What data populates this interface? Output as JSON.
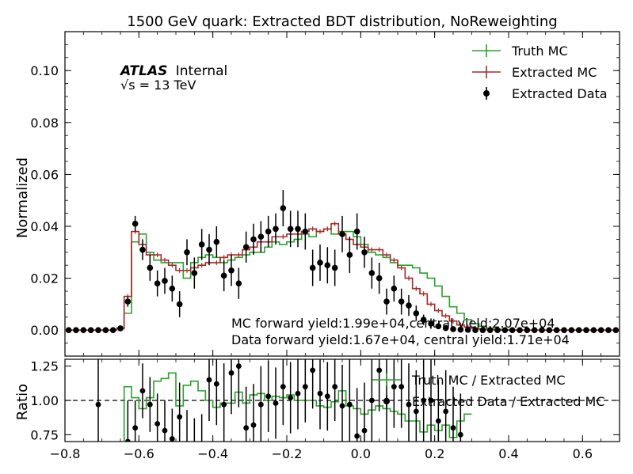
{
  "chart_data": {
    "type": "step",
    "title": "1500 GeV quark: Extracted BDT distribution, NoReweighting",
    "atlas_label": "ATLAS",
    "atlas_status": "Internal",
    "energy_label": "√s = 13 TeV",
    "colors": {
      "truth": "#2ca02c",
      "extracted": "#a52a2a",
      "data": "#000000"
    },
    "main": {
      "ylabel": "Normalized",
      "xlim": [
        -0.8,
        0.7
      ],
      "ylim": [
        -0.01,
        0.115
      ],
      "yticks": [
        "0.00",
        "0.02",
        "0.04",
        "0.06",
        "0.08",
        "0.10"
      ],
      "legend": [
        "Truth MC",
        "Extracted MC",
        "Extracted Data"
      ],
      "legend_position": "top-right",
      "annotations": [
        "MC forward yield:1.99e+04,central yield:2.07e+04",
        "Data forward yield:1.67e+04, central yield:1.71e+04"
      ]
    },
    "ratio": {
      "ylabel": "Ratio",
      "ylim": [
        0.7,
        1.3
      ],
      "yticks": [
        "0.75",
        "1.00",
        "1.25"
      ],
      "reference_line": 1.0,
      "legend": [
        "Truth MC / Extracted MC",
        "Extracted Data / Extracted MC"
      ]
    },
    "xticks": [
      "−0.8",
      "−0.6",
      "−0.4",
      "−0.2",
      "0.0",
      "0.2",
      "0.4",
      "0.6"
    ],
    "bins": {
      "start": -0.8,
      "width": 0.02,
      "count": 75
    },
    "series": [
      {
        "name": "Truth MC",
        "values": [
          0,
          0,
          0,
          0,
          0,
          0,
          0,
          0.0005,
          0.0065,
          0.034,
          0.037,
          0.03,
          0.027,
          0.026,
          0.026,
          0.026,
          0.02,
          0.026,
          0.028,
          0.029,
          0.028,
          0.026,
          0.027,
          0.028,
          0.029,
          0.03,
          0.03,
          0.032,
          0.034,
          0.033,
          0.034,
          0.035,
          0.037,
          0.036,
          0.038,
          0.039,
          0.037,
          0.038,
          0.038,
          0.036,
          0.033,
          0.03,
          0.029,
          0.028,
          0.026,
          0.025,
          0.025,
          0.024,
          0.022,
          0.02,
          0.017,
          0.013,
          0.009,
          0.0065,
          0.004,
          0.0025,
          0.0015,
          0.0008,
          0.0004,
          0.0002,
          0.0001,
          0,
          0,
          0,
          0,
          0,
          0,
          0,
          0,
          0,
          0,
          0,
          0,
          0,
          0
        ]
      },
      {
        "name": "Extracted MC",
        "values": [
          0,
          0,
          0,
          0,
          0,
          0,
          0,
          0.0008,
          0.013,
          0.038,
          0.033,
          0.029,
          0.029,
          0.027,
          0.025,
          0.023,
          0.023,
          0.024,
          0.025,
          0.026,
          0.026,
          0.028,
          0.029,
          0.029,
          0.031,
          0.032,
          0.034,
          0.034,
          0.036,
          0.036,
          0.037,
          0.037,
          0.038,
          0.039,
          0.038,
          0.039,
          0.041,
          0.037,
          0.035,
          0.033,
          0.032,
          0.031,
          0.031,
          0.029,
          0.027,
          0.024,
          0.02,
          0.016,
          0.014,
          0.01,
          0.0075,
          0.0055,
          0.0035,
          0.002,
          0.0012,
          0.0007,
          0.0004,
          0.0002,
          0.0001,
          0,
          0,
          0,
          0,
          0,
          0,
          0,
          0,
          0,
          0,
          0,
          0,
          0,
          0,
          0,
          0
        ]
      },
      {
        "name": "Extracted Data",
        "values": [
          0,
          0,
          0,
          0,
          0,
          0,
          0,
          0.0007,
          0.011,
          0.041,
          0.031,
          0.024,
          0.018,
          0.019,
          0.016,
          0.01,
          0.03,
          0.022,
          0.033,
          0.031,
          0.034,
          0.021,
          0.023,
          0.018,
          0.032,
          0.035,
          0.036,
          0.038,
          0.039,
          0.047,
          0.039,
          0.039,
          0.038,
          0.024,
          0.026,
          0.025,
          0.024,
          0.037,
          0.029,
          0.038,
          0.03,
          0.022,
          0.02,
          0.011,
          0.016,
          0.011,
          0.0095,
          0.0065,
          0.004,
          0.0025,
          0.0015,
          0.0008,
          0.0004,
          0.0002,
          0.0001,
          0,
          0,
          0,
          0,
          0,
          0,
          0,
          0,
          0,
          0,
          0,
          0,
          0,
          0,
          0,
          0,
          0,
          0,
          0,
          0
        ],
        "errors": [
          0,
          0,
          0,
          0,
          0,
          0,
          0,
          0.0005,
          0.002,
          0.003,
          0.004,
          0.005,
          0.005,
          0.005,
          0.005,
          0.005,
          0.005,
          0.006,
          0.006,
          0.006,
          0.006,
          0.006,
          0.006,
          0.006,
          0.006,
          0.006,
          0.006,
          0.006,
          0.006,
          0.007,
          0.007,
          0.007,
          0.007,
          0.007,
          0.007,
          0.007,
          0.007,
          0.007,
          0.007,
          0.007,
          0.006,
          0.006,
          0.006,
          0.005,
          0.005,
          0.005,
          0.004,
          0.003,
          0.002,
          0.002,
          0.001,
          0.001,
          0.0008,
          0.0005,
          0.0003,
          0,
          0,
          0,
          0,
          0,
          0,
          0,
          0,
          0,
          0,
          0,
          0,
          0,
          0,
          0,
          0,
          0,
          0,
          0,
          0
        ]
      }
    ],
    "ratio_series": [
      {
        "name": "Truth MC / Extracted MC",
        "bins_start": -0.66,
        "values": [
          0.62,
          1.1,
          1.02,
          0.94,
          1.02,
          1.14,
          1.16,
          1.2,
          0.96,
          1.11,
          1.14,
          1.07,
          1.0,
          0.95,
          0.98,
          0.98,
          1.06,
          0.98,
          1.04,
          1.05,
          1.0,
          1.03,
          1.02,
          1.04,
          1.0,
          1.0,
          1.0,
          0.96,
          0.95,
          0.99,
          1.07,
          0.96,
          0.94,
          0.9,
          0.93,
          0.96,
          0.94,
          0.92,
          0.9,
          0.85,
          0.85,
          0.77,
          0.82,
          0.78,
          0.82,
          0.73,
          0.85,
          0.9
        ]
      },
      {
        "name": "Extracted Data / Extracted MC",
        "x": [
          -0.72,
          -0.64,
          -0.62,
          -0.6,
          -0.58,
          -0.56,
          -0.54,
          -0.52,
          -0.5,
          -0.48,
          -0.46,
          -0.44,
          -0.42,
          -0.4,
          -0.38,
          -0.36,
          -0.34,
          -0.32,
          -0.3,
          -0.28,
          -0.26,
          -0.24,
          -0.22,
          -0.2,
          -0.18,
          -0.16,
          -0.14,
          -0.12,
          -0.1,
          -0.08,
          -0.06,
          -0.04,
          -0.02,
          0.0,
          0.02,
          0.04,
          0.06,
          0.08,
          0.1,
          0.12,
          0.14,
          0.16,
          0.18,
          0.2,
          0.22,
          0.24,
          0.26
        ],
        "values": [
          0.97,
          0.7,
          0.8,
          1.07,
          0.97,
          0.83,
          0.78,
          0.72,
          0.88,
          0.68,
          0.62,
          0.6,
          1.15,
          1.12,
          0.97,
          1.2,
          1.25,
          0.8,
          0.82,
          0.97,
          1.03,
          0.98,
          1.1,
          1.02,
          1.05,
          1.1,
          1.22,
          1.05,
          1.03,
          1.1,
          0.96,
          0.97,
          0.74,
          0.78,
          1.0,
          1.22,
          1.0,
          1.1,
          1.1,
          0.97,
          0.92,
          1.0,
          1.0,
          0.85,
          0.92,
          0.8,
          0.75
        ],
        "errors": [
          0.35,
          0.3,
          0.2,
          0.2,
          0.2,
          0.22,
          0.22,
          0.22,
          0.25,
          0.25,
          0.25,
          0.3,
          0.3,
          0.3,
          0.3,
          0.3,
          0.3,
          0.3,
          0.3,
          0.28,
          0.26,
          0.26,
          0.28,
          0.26,
          0.26,
          0.26,
          0.28,
          0.26,
          0.25,
          0.25,
          0.3,
          0.35,
          0.35,
          0.35,
          0.3,
          0.3,
          0.3,
          0.3,
          0.3,
          0.3,
          0.3,
          0.3,
          0.3,
          0.3,
          0.3,
          0.3,
          0.3
        ]
      }
    ]
  }
}
